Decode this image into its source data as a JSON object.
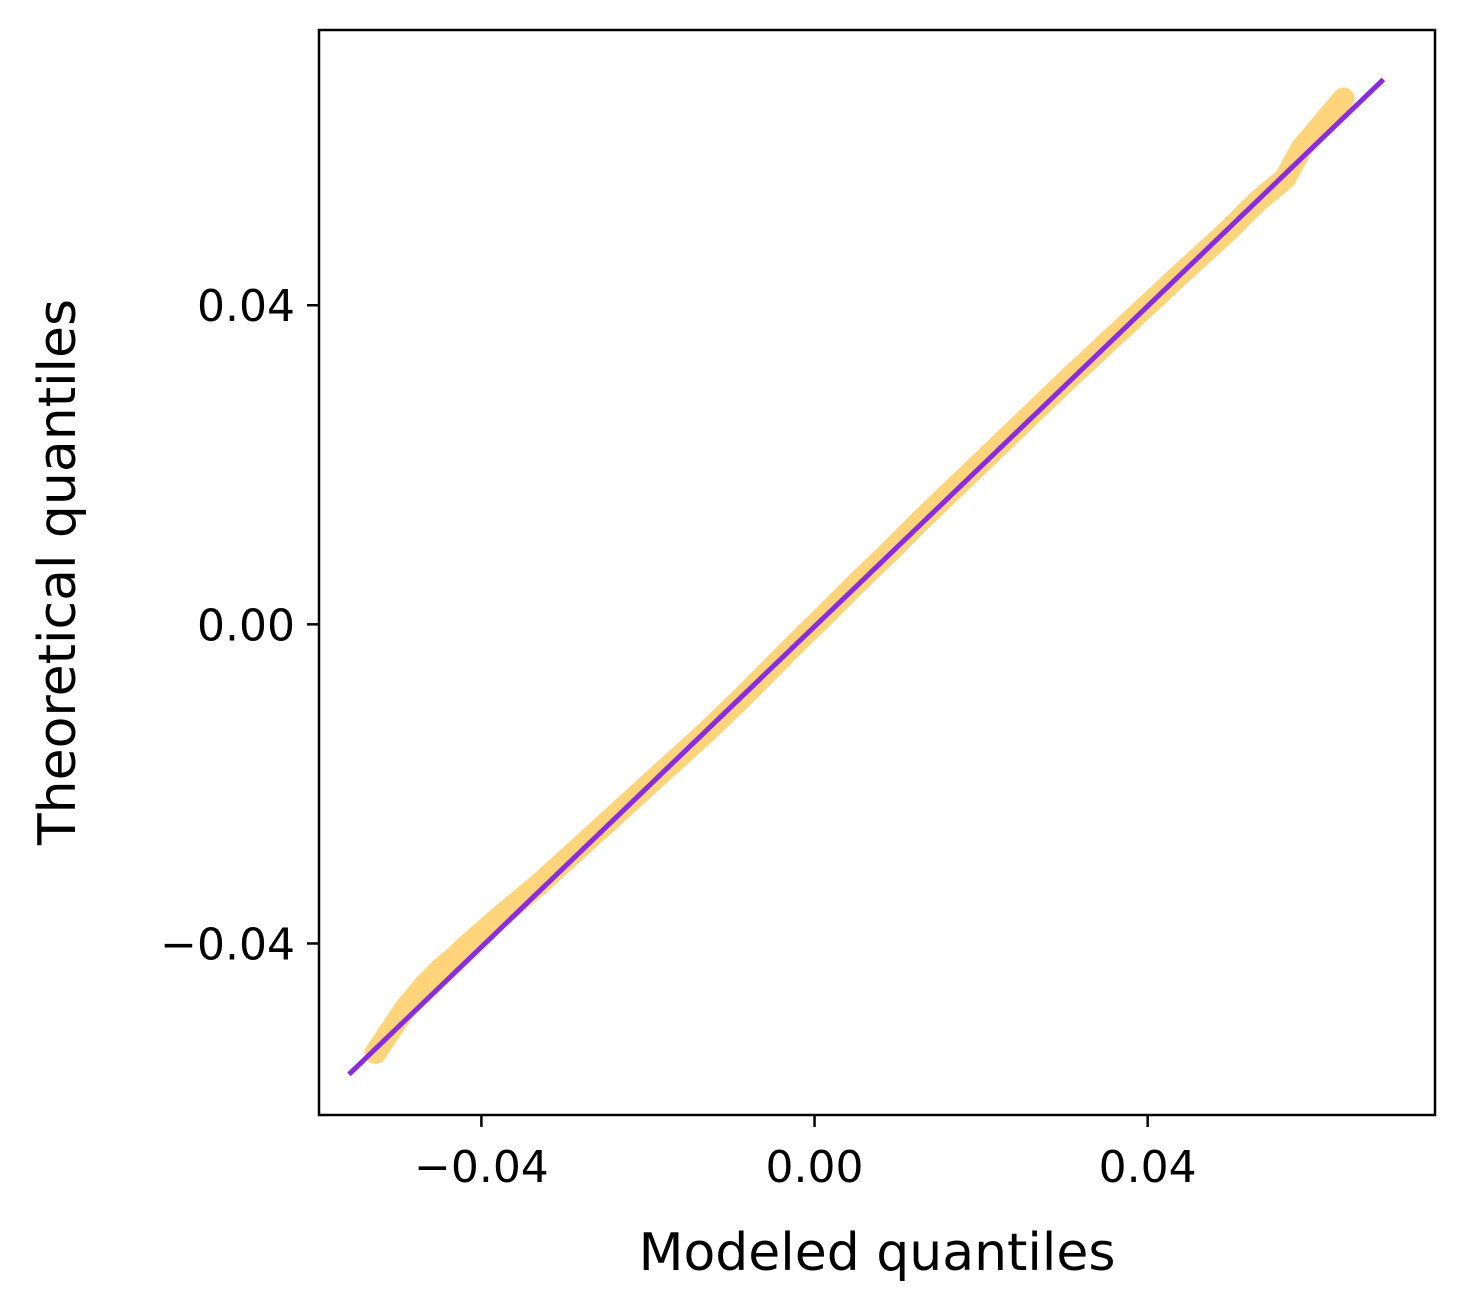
{
  "chart_data": {
    "type": "scatter",
    "title": "",
    "xlabel": "Modeled quantiles",
    "ylabel": "Theoretical quantiles",
    "xlim": [
      -0.0595,
      0.0745
    ],
    "ylim": [
      -0.0615,
      0.0745
    ],
    "grid": false,
    "legend": "none",
    "x_ticks": [
      -0.04,
      0.0,
      0.04
    ],
    "x_tick_labels": [
      "−0.04",
      "0.00",
      "0.04"
    ],
    "y_ticks": [
      -0.04,
      0.0,
      0.04
    ],
    "y_tick_labels": [
      "−0.04",
      "0.00",
      "0.04"
    ],
    "point_color": "#FFD47A",
    "line_color": "#8A2BE2",
    "series": [
      {
        "kind": "points",
        "x": [
          -0.0527,
          -0.0492,
          -0.0468,
          -0.0449,
          -0.0432,
          -0.0418,
          -0.0406,
          -0.0395,
          -0.0385,
          -0.0375,
          -0.036,
          -0.0345,
          -0.033,
          -0.031,
          -0.029,
          -0.027,
          -0.025,
          -0.023,
          -0.021,
          -0.019,
          -0.017,
          -0.015,
          -0.013,
          -0.011,
          -0.009,
          -0.007,
          -0.005,
          -0.003,
          -0.001,
          0.001,
          0.003,
          0.005,
          0.007,
          0.009,
          0.011,
          0.013,
          0.015,
          0.017,
          0.019,
          0.021,
          0.023,
          0.025,
          0.027,
          0.029,
          0.031,
          0.033,
          0.035,
          0.037,
          0.039,
          0.041,
          0.043,
          0.045,
          0.047,
          0.049,
          0.0505,
          0.052,
          0.0535,
          0.0565,
          0.0585,
          0.0635
        ],
        "y": [
          -0.0537,
          -0.0482,
          -0.0452,
          -0.0432,
          -0.0417,
          -0.0403,
          -0.0392,
          -0.0382,
          -0.0373,
          -0.0364,
          -0.0351,
          -0.0338,
          -0.0325,
          -0.0306,
          -0.0287,
          -0.0268,
          -0.0249,
          -0.023,
          -0.0211,
          -0.0192,
          -0.0173,
          -0.0154,
          -0.0135,
          -0.0115,
          -0.0095,
          -0.0074,
          -0.0053,
          -0.0032,
          -0.0011,
          0.0009,
          0.003,
          0.0051,
          0.0071,
          0.0091,
          0.0112,
          0.0133,
          0.0153,
          0.0173,
          0.0193,
          0.0213,
          0.0233,
          0.0253,
          0.0273,
          0.0293,
          0.0313,
          0.0332,
          0.0352,
          0.0371,
          0.0391,
          0.041,
          0.043,
          0.0449,
          0.0468,
          0.0487,
          0.0502,
          0.0518,
          0.0533,
          0.0559,
          0.0597,
          0.0659
        ]
      },
      {
        "kind": "reference-line",
        "x": [
          -0.0559,
          0.0683
        ],
        "y": [
          -0.0564,
          0.0683
        ]
      }
    ]
  }
}
